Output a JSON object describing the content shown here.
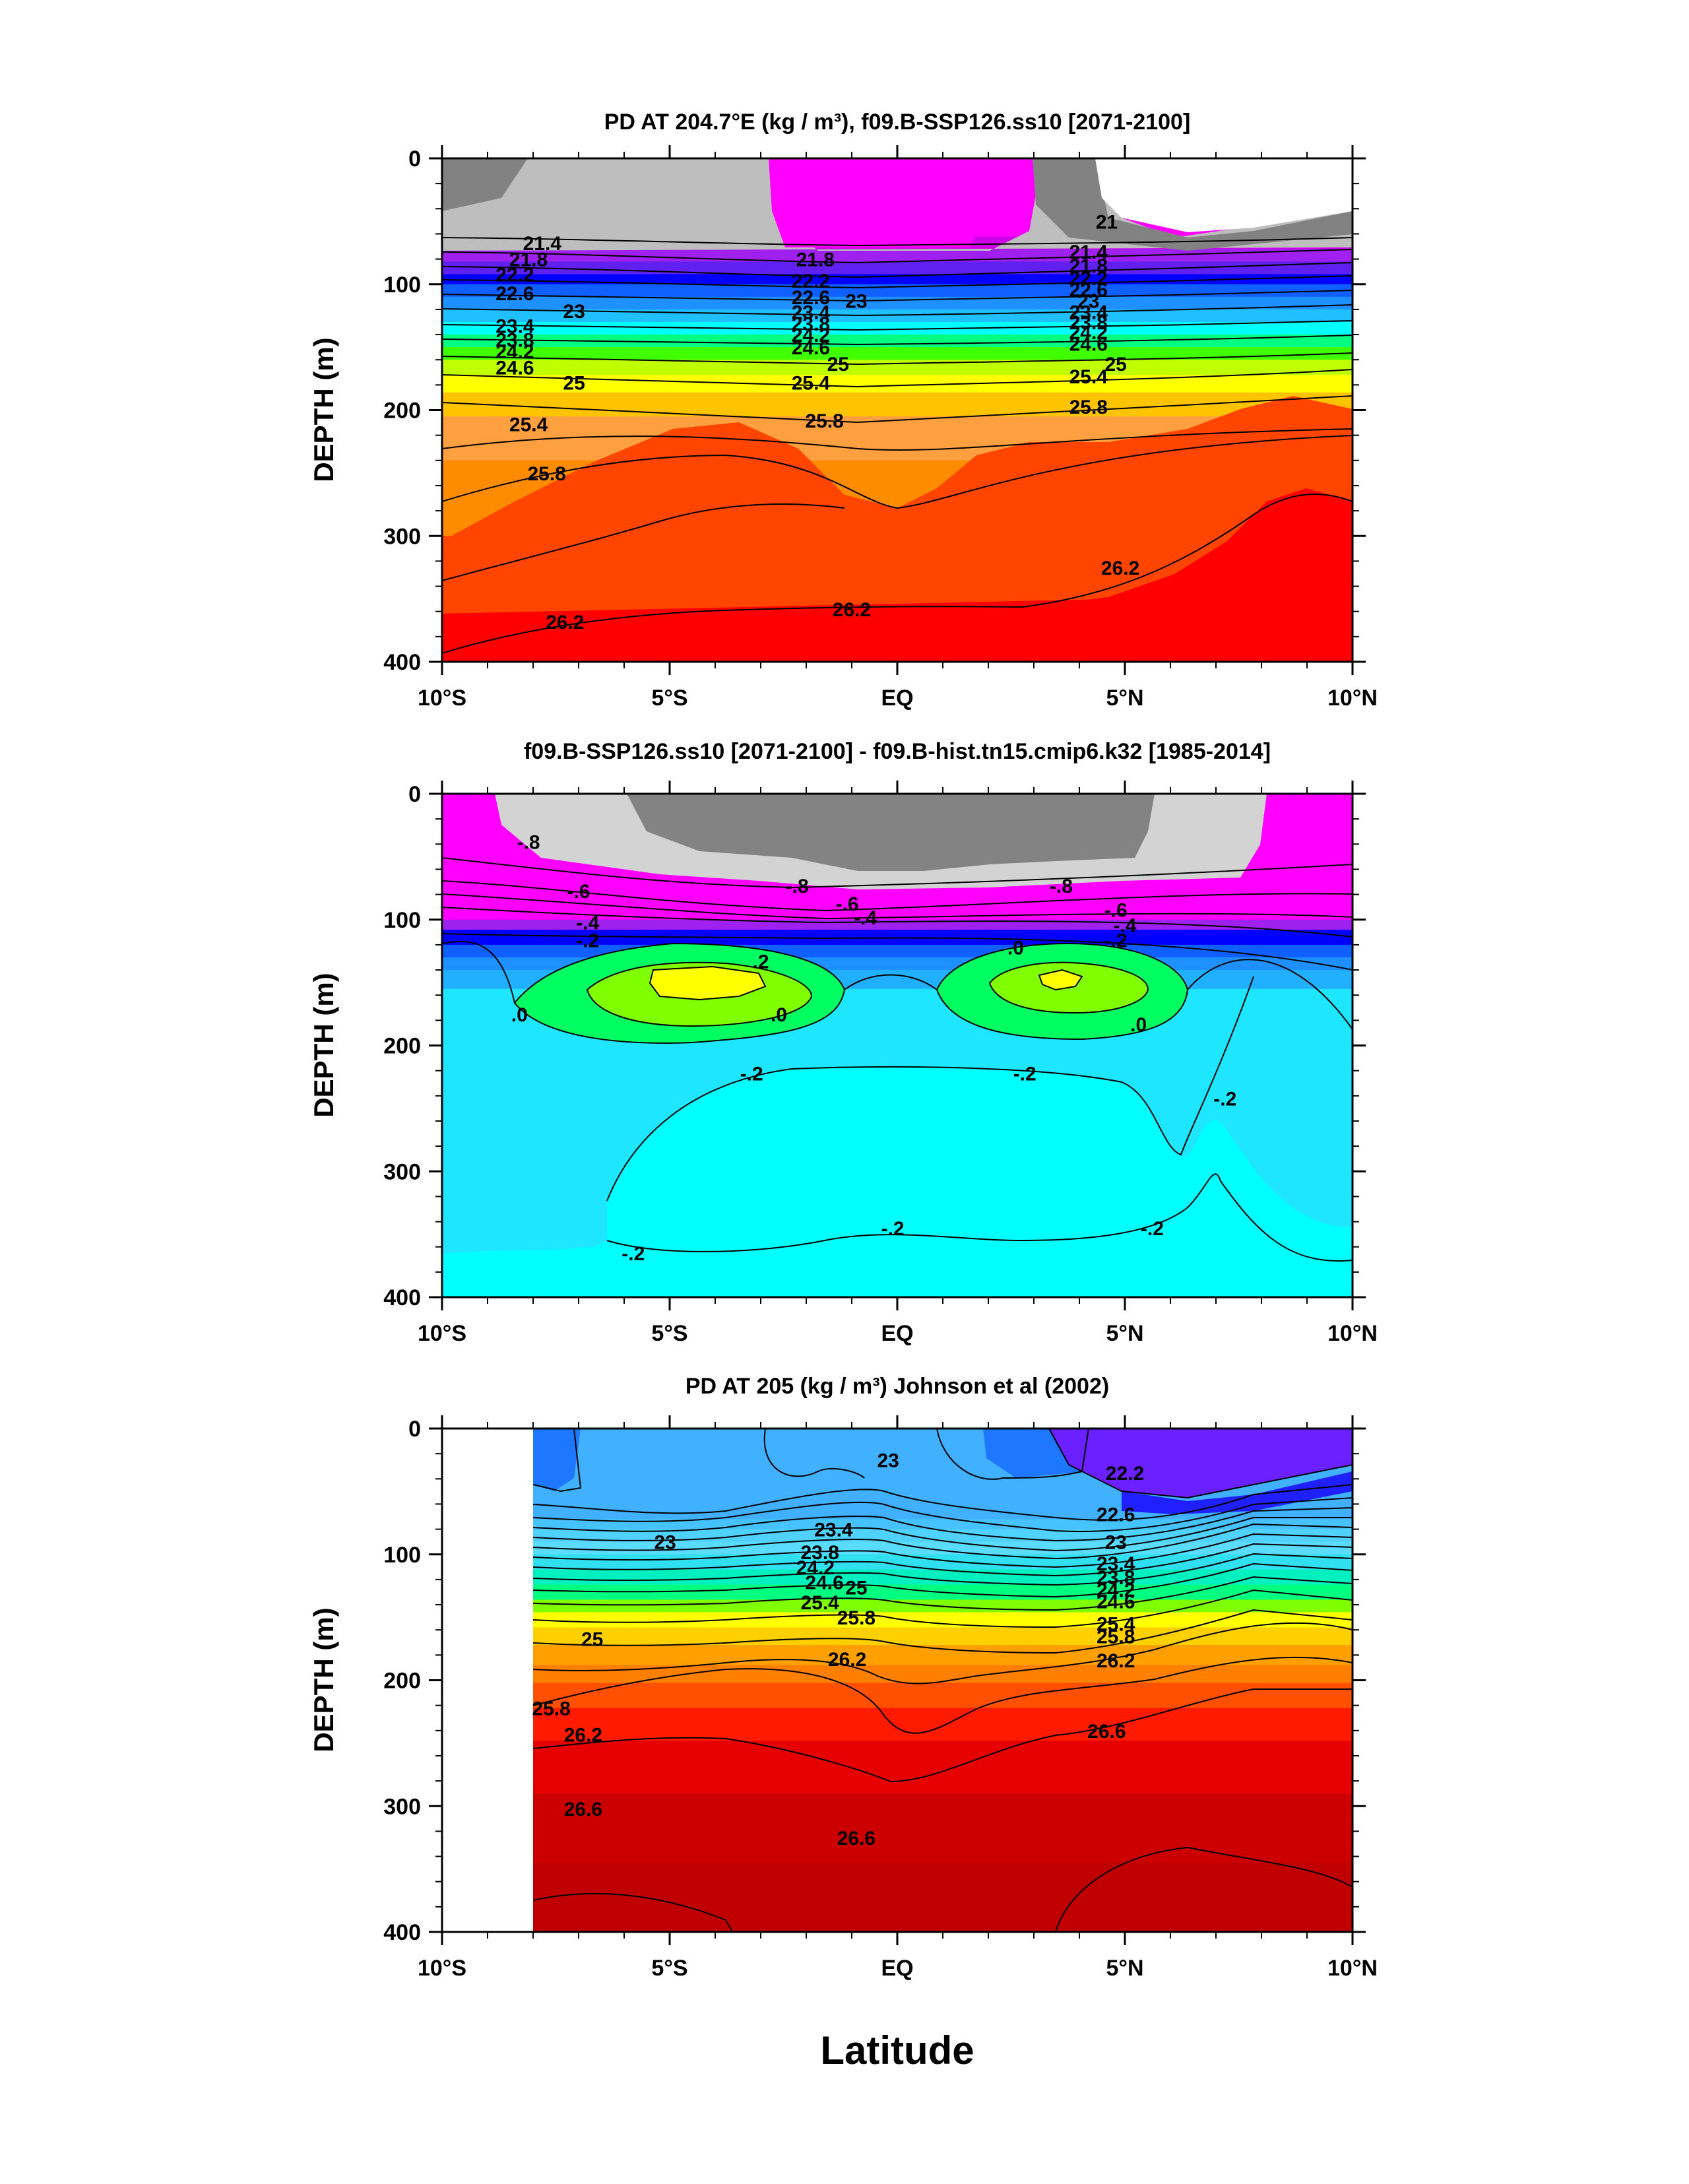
{
  "figure": {
    "xlabel": "Latitude"
  },
  "chart_data": [
    {
      "type": "contour",
      "title": "PD AT 204.7°E (kg / m³), f09.B-SSP126.ss10 [2071-2100]",
      "xlabel": "",
      "ylabel": "DEPTH (m)",
      "xlim": [
        -10,
        10
      ],
      "ylim": [
        400,
        0
      ],
      "x_ticks": [
        {
          "value": -10,
          "label": "10°S"
        },
        {
          "value": -5,
          "label": "5°S"
        },
        {
          "value": 0,
          "label": "EQ"
        },
        {
          "value": 5,
          "label": "5°N"
        },
        {
          "value": 10,
          "label": "10°N"
        }
      ],
      "y_ticks": [
        0,
        100,
        200,
        300,
        400
      ],
      "bands": [
        {
          "depth": [
            0,
            62
          ],
          "color": "#ff00ff"
        },
        {
          "depth": [
            62,
            72
          ],
          "color": "#d000e8"
        },
        {
          "depth": [
            72,
            82
          ],
          "color": "#a020f0"
        },
        {
          "depth": [
            82,
            92
          ],
          "color": "#6020f0"
        },
        {
          "depth": [
            92,
            100
          ],
          "color": "#0000ff"
        },
        {
          "depth": [
            100,
            110
          ],
          "color": "#1060ff"
        },
        {
          "depth": [
            110,
            120
          ],
          "color": "#1e90ff"
        },
        {
          "depth": [
            120,
            130
          ],
          "color": "#20c0ff"
        },
        {
          "depth": [
            130,
            140
          ],
          "color": "#00ffff"
        },
        {
          "depth": [
            140,
            150
          ],
          "color": "#00ff80"
        },
        {
          "depth": [
            150,
            160
          ],
          "color": "#40ff00"
        },
        {
          "depth": [
            160,
            172
          ],
          "color": "#c0ff00"
        },
        {
          "depth": [
            172,
            186
          ],
          "color": "#ffff00"
        },
        {
          "depth": [
            186,
            205
          ],
          "color": "#ffc400"
        },
        {
          "depth": [
            205,
            240
          ],
          "color": "#ffa040"
        },
        {
          "depth": [
            240,
            300
          ],
          "color": "#ff8c00"
        },
        {
          "depth": [
            300,
            350
          ],
          "color": "#ff4500"
        },
        {
          "depth": [
            350,
            400
          ],
          "color": "#ff0000"
        }
      ],
      "contour_labels": [
        {
          "text": "21.4",
          "lat": -7.8,
          "depth": 67
        },
        {
          "text": "21.8",
          "lat": -8.1,
          "depth": 80
        },
        {
          "text": "22.2",
          "lat": -8.4,
          "depth": 92
        },
        {
          "text": "22.6",
          "lat": -8.4,
          "depth": 107
        },
        {
          "text": "23",
          "lat": -7.1,
          "depth": 121
        },
        {
          "text": "23.4",
          "lat": -8.4,
          "depth": 133
        },
        {
          "text": "23.8",
          "lat": -8.4,
          "depth": 144
        },
        {
          "text": "24.2",
          "lat": -8.4,
          "depth": 153
        },
        {
          "text": "24.6",
          "lat": -8.4,
          "depth": 166
        },
        {
          "text": "25",
          "lat": -7.1,
          "depth": 178
        },
        {
          "text": "25.4",
          "lat": -8.1,
          "depth": 211
        },
        {
          "text": "25.8",
          "lat": -7.7,
          "depth": 250
        },
        {
          "text": "26.2",
          "lat": -7.3,
          "depth": 368
        },
        {
          "text": "21.8",
          "lat": -1.8,
          "depth": 80
        },
        {
          "text": "22.2",
          "lat": -1.9,
          "depth": 97
        },
        {
          "text": "22.6",
          "lat": -1.9,
          "depth": 110
        },
        {
          "text": "23",
          "lat": -0.9,
          "depth": 113
        },
        {
          "text": "23.4",
          "lat": -1.9,
          "depth": 122
        },
        {
          "text": "23.8",
          "lat": -1.9,
          "depth": 131
        },
        {
          "text": "24.2",
          "lat": -1.9,
          "depth": 140
        },
        {
          "text": "24.6",
          "lat": -1.9,
          "depth": 150
        },
        {
          "text": "25",
          "lat": -1.3,
          "depth": 163
        },
        {
          "text": "25.4",
          "lat": -1.9,
          "depth": 178
        },
        {
          "text": "25.8",
          "lat": -1.6,
          "depth": 208
        },
        {
          "text": "26.2",
          "lat": -1.0,
          "depth": 358
        },
        {
          "text": "21",
          "lat": 4.6,
          "depth": 50
        },
        {
          "text": "21.4",
          "lat": 4.2,
          "depth": 74
        },
        {
          "text": "21.8",
          "lat": 4.2,
          "depth": 85
        },
        {
          "text": "22.2",
          "lat": 4.2,
          "depth": 95
        },
        {
          "text": "22.6",
          "lat": 4.2,
          "depth": 104
        },
        {
          "text": "23",
          "lat": 4.2,
          "depth": 113
        },
        {
          "text": "23.4",
          "lat": 4.2,
          "depth": 122
        },
        {
          "text": "23.8",
          "lat": 4.2,
          "depth": 130
        },
        {
          "text": "24.2",
          "lat": 4.2,
          "depth": 138
        },
        {
          "text": "24.6",
          "lat": 4.2,
          "depth": 147
        },
        {
          "text": "25",
          "lat": 4.8,
          "depth": 163
        },
        {
          "text": "25.4",
          "lat": 4.2,
          "depth": 173
        },
        {
          "text": "25.8",
          "lat": 4.2,
          "depth": 197
        },
        {
          "text": "26.2",
          "lat": 4.9,
          "depth": 325
        }
      ]
    },
    {
      "type": "contour",
      "title": "f09.B-SSP126.ss10 [2071-2100] - f09.B-hist.tn15.cmip6.k32 [1985-2014]",
      "xlabel": "",
      "ylabel": "DEPTH (m)",
      "xlim": [
        -10,
        10
      ],
      "ylim": [
        400,
        0
      ],
      "x_ticks": [
        {
          "value": -10,
          "label": "10°S"
        },
        {
          "value": -5,
          "label": "5°S"
        },
        {
          "value": 0,
          "label": "EQ"
        },
        {
          "value": 5,
          "label": "5°N"
        },
        {
          "value": 10,
          "label": "10°N"
        }
      ],
      "y_ticks": [
        0,
        100,
        200,
        300,
        400
      ],
      "bands": [
        {
          "depth": [
            0,
            100
          ],
          "color": "#ff00ff"
        },
        {
          "depth": [
            100,
            108
          ],
          "color": "#a020f0"
        },
        {
          "depth": [
            108,
            120
          ],
          "color": "#0000ff"
        },
        {
          "depth": [
            120,
            130
          ],
          "color": "#1060ff"
        },
        {
          "depth": [
            130,
            140
          ],
          "color": "#1e90ff"
        },
        {
          "depth": [
            140,
            155
          ],
          "color": "#20b0ff"
        },
        {
          "depth": [
            155,
            400
          ],
          "color": "#1ee6ff"
        }
      ],
      "contour_labels": [
        {
          "text": "-.8",
          "lat": -8.1,
          "depth": 38
        },
        {
          "text": "-.6",
          "lat": -7.0,
          "depth": 77
        },
        {
          "text": "-.4",
          "lat": -6.8,
          "depth": 102
        },
        {
          "text": "-.2",
          "lat": -6.8,
          "depth": 116
        },
        {
          "text": ".0",
          "lat": -8.3,
          "depth": 175
        },
        {
          "text": ".2",
          "lat": -3.0,
          "depth": 133
        },
        {
          "text": ".0",
          "lat": -2.6,
          "depth": 175
        },
        {
          "text": "-.8",
          "lat": -2.2,
          "depth": 73
        },
        {
          "text": "-.6",
          "lat": -1.1,
          "depth": 87
        },
        {
          "text": "-.4",
          "lat": -0.7,
          "depth": 98
        },
        {
          "text": ".0",
          "lat": 2.6,
          "depth": 122
        },
        {
          "text": "-.8",
          "lat": 3.6,
          "depth": 73
        },
        {
          "text": "-.6",
          "lat": 4.8,
          "depth": 92
        },
        {
          "text": "-.4",
          "lat": 5.0,
          "depth": 104
        },
        {
          "text": "-.2",
          "lat": 4.8,
          "depth": 116
        },
        {
          "text": ".0",
          "lat": 5.3,
          "depth": 183
        },
        {
          "text": "-.2",
          "lat": -3.2,
          "depth": 222
        },
        {
          "text": "-.2",
          "lat": 2.8,
          "depth": 222
        },
        {
          "text": "-.2",
          "lat": 7.2,
          "depth": 242
        },
        {
          "text": "-.2",
          "lat": -5.8,
          "depth": 365
        },
        {
          "text": "-.2",
          "lat": -0.1,
          "depth": 345
        },
        {
          "text": "-.2",
          "lat": 5.6,
          "depth": 345
        }
      ]
    },
    {
      "type": "contour",
      "title": "PD AT 205 (kg / m³) Johnson et al (2002)",
      "xlabel": "Latitude",
      "ylabel": "DEPTH (m)",
      "xlim": [
        -10,
        10
      ],
      "ylim": [
        400,
        0
      ],
      "x_ticks": [
        {
          "value": -10,
          "label": "10°S"
        },
        {
          "value": -5,
          "label": "5°S"
        },
        {
          "value": 0,
          "label": "EQ"
        },
        {
          "value": 5,
          "label": "5°N"
        },
        {
          "value": 10,
          "label": "10°N"
        }
      ],
      "y_ticks": [
        0,
        100,
        200,
        300,
        400
      ],
      "bands": [
        {
          "depth": [
            0,
            72
          ],
          "color": "#40b0ff"
        },
        {
          "depth": [
            72,
            80
          ],
          "color": "#46c3ff"
        },
        {
          "depth": [
            80,
            90
          ],
          "color": "#50d2ff"
        },
        {
          "depth": [
            90,
            100
          ],
          "color": "#5adcff"
        },
        {
          "depth": [
            100,
            112
          ],
          "color": "#30e0f0"
        },
        {
          "depth": [
            112,
            124
          ],
          "color": "#00f0c0"
        },
        {
          "depth": [
            124,
            136
          ],
          "color": "#00ff80"
        },
        {
          "depth": [
            136,
            146
          ],
          "color": "#80ff00"
        },
        {
          "depth": [
            146,
            158
          ],
          "color": "#ffff00"
        },
        {
          "depth": [
            158,
            172
          ],
          "color": "#ffd000"
        },
        {
          "depth": [
            172,
            188
          ],
          "color": "#ffa000"
        },
        {
          "depth": [
            188,
            202
          ],
          "color": "#ff8000"
        },
        {
          "depth": [
            202,
            222
          ],
          "color": "#ff5000"
        },
        {
          "depth": [
            222,
            248
          ],
          "color": "#ff1a00"
        },
        {
          "depth": [
            248,
            290
          ],
          "color": "#e60000"
        },
        {
          "depth": [
            290,
            345
          ],
          "color": "#cc0000"
        },
        {
          "depth": [
            345,
            400
          ],
          "color": "#c00000"
        }
      ],
      "contour_labels": [
        {
          "text": "23",
          "lat": -0.2,
          "depth": 25
        },
        {
          "text": "22.2",
          "lat": 5.0,
          "depth": 35
        },
        {
          "text": "22.6",
          "lat": 4.8,
          "depth": 68
        },
        {
          "text": "23",
          "lat": -5.1,
          "depth": 90
        },
        {
          "text": "23",
          "lat": 4.8,
          "depth": 90
        },
        {
          "text": "23.4",
          "lat": -1.4,
          "depth": 80
        },
        {
          "text": "23.8",
          "lat": -1.7,
          "depth": 98
        },
        {
          "text": "24.2",
          "lat": -1.8,
          "depth": 110
        },
        {
          "text": "24.6",
          "lat": -1.6,
          "depth": 122
        },
        {
          "text": "25",
          "lat": -0.9,
          "depth": 126
        },
        {
          "text": "25.4",
          "lat": -1.7,
          "depth": 138
        },
        {
          "text": "25.8",
          "lat": -0.9,
          "depth": 150
        },
        {
          "text": "26.2",
          "lat": -1.1,
          "depth": 183
        },
        {
          "text": "23.4",
          "lat": 4.8,
          "depth": 107
        },
        {
          "text": "23.8",
          "lat": 4.8,
          "depth": 118
        },
        {
          "text": "24.2",
          "lat": 4.8,
          "depth": 128
        },
        {
          "text": "24.6",
          "lat": 4.8,
          "depth": 137
        },
        {
          "text": "25.4",
          "lat": 4.8,
          "depth": 155
        },
        {
          "text": "25.8",
          "lat": 4.8,
          "depth": 165
        },
        {
          "text": "26.2",
          "lat": 4.8,
          "depth": 184
        },
        {
          "text": "25",
          "lat": -6.7,
          "depth": 167
        },
        {
          "text": "25.8",
          "lat": -7.6,
          "depth": 222
        },
        {
          "text": "26.2",
          "lat": -6.9,
          "depth": 243
        },
        {
          "text": "26.6",
          "lat": -6.9,
          "depth": 302
        },
        {
          "text": "26.6",
          "lat": -0.9,
          "depth": 325
        },
        {
          "text": "26.6",
          "lat": 4.6,
          "depth": 240
        }
      ]
    }
  ]
}
